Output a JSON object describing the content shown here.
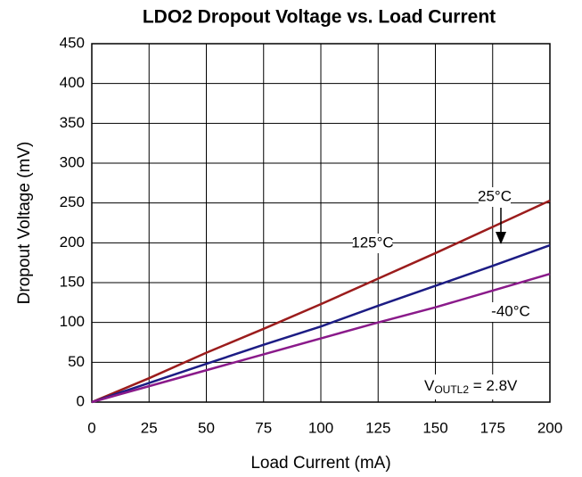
{
  "chart_data": {
    "type": "line",
    "title": "LDO2 Dropout Voltage vs. Load Current",
    "x_label": "Load Current (mA)",
    "y_label": "Dropout Voltage (mV)",
    "x": [
      0,
      25,
      50,
      75,
      100,
      125,
      150,
      175,
      200
    ],
    "series": [
      {
        "name": "125°C",
        "color": "#9b1c1c",
        "values": [
          0,
          30,
          62,
          92,
          123,
          155,
          187,
          220,
          253
        ]
      },
      {
        "name": "25°C",
        "color": "#1c1c84",
        "values": [
          0,
          24,
          48,
          72,
          95,
          121,
          146,
          171,
          197
        ]
      },
      {
        "name": "-40°C",
        "color": "#8a1a8a",
        "values": [
          0,
          20,
          40,
          60,
          80,
          100,
          119,
          140,
          161
        ]
      }
    ],
    "annotation": {
      "main": "V",
      "subscript": "OUTL2",
      "rest": " = 2.8V"
    },
    "xlim": [
      0,
      200
    ],
    "xticks": [
      0,
      25,
      50,
      75,
      100,
      125,
      150,
      175,
      200
    ],
    "ylim": [
      0,
      450
    ],
    "yticks": [
      0,
      50,
      100,
      150,
      200,
      250,
      300,
      350,
      400,
      450
    ],
    "grid": true
  }
}
